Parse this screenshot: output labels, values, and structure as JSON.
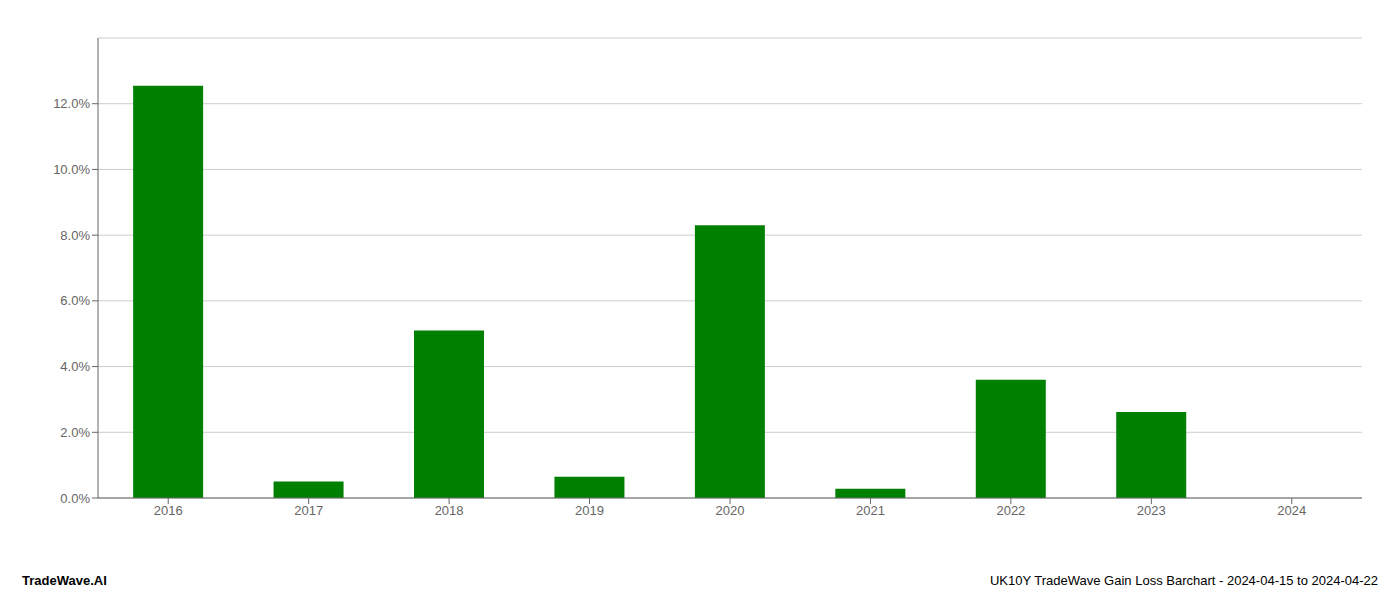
{
  "chart_data": {
    "type": "bar",
    "categories": [
      "2016",
      "2017",
      "2018",
      "2019",
      "2020",
      "2021",
      "2022",
      "2023",
      "2024"
    ],
    "values": [
      0.1255,
      0.005,
      0.051,
      0.0065,
      0.083,
      0.0028,
      0.036,
      0.0262,
      0.0
    ],
    "color": "#008000",
    "ylim": [
      0,
      0.14
    ],
    "yticks": [
      {
        "value": 0.0,
        "label": "0.0%"
      },
      {
        "value": 0.02,
        "label": "2.0%"
      },
      {
        "value": 0.04,
        "label": "4.0%"
      },
      {
        "value": 0.06,
        "label": "6.0%"
      },
      {
        "value": 0.08,
        "label": "8.0%"
      },
      {
        "value": 0.1,
        "label": "10.0%"
      },
      {
        "value": 0.12,
        "label": "12.0%"
      }
    ],
    "grid": true,
    "annotations": [
      "TradeWave.AI",
      "UK10Y TradeWave Gain Loss Barchart - 2024-04-15 to 2024-04-22"
    ]
  }
}
